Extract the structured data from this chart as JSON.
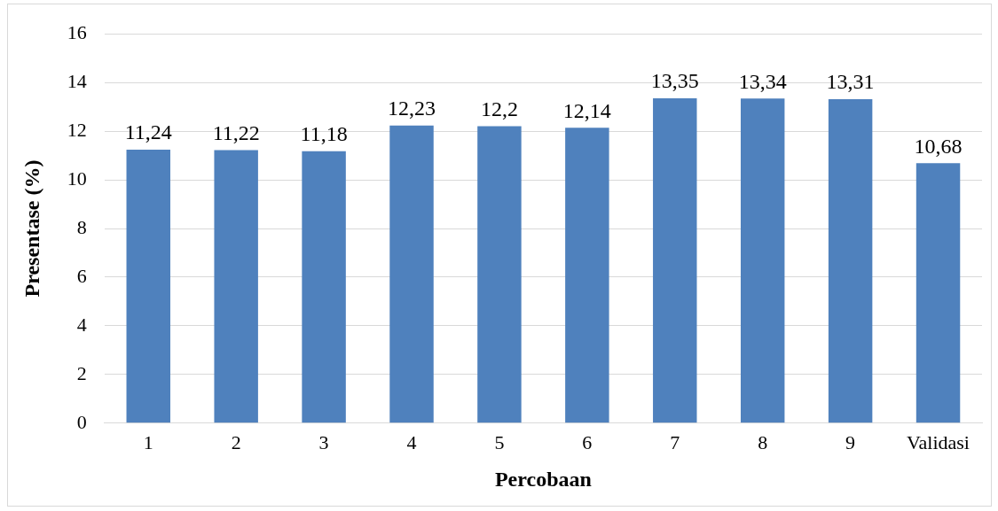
{
  "chart_data": {
    "type": "bar",
    "categories": [
      "1",
      "2",
      "3",
      "4",
      "5",
      "6",
      "7",
      "8",
      "9",
      "Validasi"
    ],
    "values": [
      11.24,
      11.22,
      11.18,
      12.23,
      12.2,
      12.14,
      13.35,
      13.34,
      13.31,
      10.68
    ],
    "value_labels": [
      "11,24",
      "11,22",
      "11,18",
      "12,23",
      "12,2",
      "12,14",
      "13,35",
      "13,34",
      "13,31",
      "10,68"
    ],
    "color": "#4f81bd",
    "xlabel": "Percobaan",
    "ylabel": "Presentase (%)",
    "ylim": [
      0,
      16
    ],
    "yticks": [
      0,
      2,
      4,
      6,
      8,
      10,
      12,
      14,
      16
    ],
    "grid": "y",
    "legend": false
  }
}
